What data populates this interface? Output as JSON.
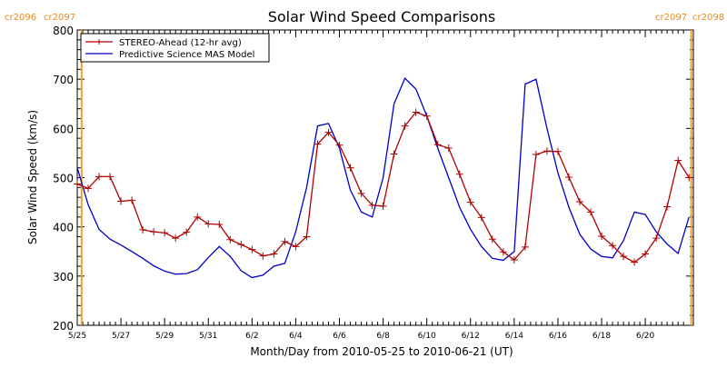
{
  "chart_data": {
    "type": "line",
    "title": "Solar Wind Speed Comparisons",
    "xlabel": "Month/Day from 2010-05-25 to 2010-06-21 (UT)",
    "ylabel": "Solar Wind Speed (km/s)",
    "x_unit": "days",
    "xlim": [
      0,
      28.2
    ],
    "ylim": [
      200,
      800
    ],
    "yticks": [
      200,
      300,
      400,
      500,
      600,
      700,
      800
    ],
    "xticks": [
      {
        "x": 0,
        "label": "5/25"
      },
      {
        "x": 2,
        "label": "5/27"
      },
      {
        "x": 4,
        "label": "5/29"
      },
      {
        "x": 6,
        "label": "5/31"
      },
      {
        "x": 8,
        "label": "6/2"
      },
      {
        "x": 10,
        "label": "6/4"
      },
      {
        "x": 12,
        "label": "6/6"
      },
      {
        "x": 14,
        "label": "6/8"
      },
      {
        "x": 16,
        "label": "6/10"
      },
      {
        "x": 18,
        "label": "6/12"
      },
      {
        "x": 20,
        "label": "6/14"
      },
      {
        "x": 22,
        "label": "6/16"
      },
      {
        "x": 24,
        "label": "6/18"
      },
      {
        "x": 26,
        "label": "6/20"
      }
    ],
    "grid": false,
    "legend": "top-left",
    "markers": [
      {
        "x": 0.2,
        "left_label": "cr2096",
        "right_label": "cr2097"
      },
      {
        "x": 28.1,
        "left_label": "cr2097",
        "right_label": "cr2098"
      }
    ],
    "series": [
      {
        "name": "STEREO-Ahead (12-hr avg)",
        "color": "#b00000",
        "marker": "plus",
        "x": [
          0,
          0.5,
          1,
          1.5,
          2,
          2.5,
          3,
          3.5,
          4,
          4.5,
          5,
          5.5,
          6,
          6.5,
          7,
          7.5,
          8,
          8.5,
          9,
          9.5,
          10,
          10.5,
          11,
          11.5,
          12,
          12.5,
          13,
          13.5,
          14,
          14.5,
          15,
          15.5,
          16,
          16.5,
          17,
          17.5,
          18,
          18.5,
          19,
          19.5,
          20,
          20.5,
          21,
          21.5,
          22,
          22.5,
          23,
          23.5,
          24,
          24.5,
          25,
          25.5,
          26,
          26.5,
          27,
          27.5,
          28
        ],
        "y": [
          487,
          478,
          502,
          502,
          452,
          454,
          394,
          390,
          388,
          377,
          389,
          420,
          406,
          405,
          374,
          364,
          354,
          341,
          345,
          370,
          360,
          380,
          568,
          592,
          566,
          520,
          468,
          444,
          442,
          548,
          605,
          633,
          625,
          567,
          560,
          507,
          450,
          419,
          375,
          349,
          333,
          359,
          547,
          554,
          553,
          501,
          451,
          430,
          381,
          362,
          340,
          328,
          345,
          377,
          441,
          535,
          500
        ]
      },
      {
        "name": "Predictive Science MAS Model",
        "color": "#0000c8",
        "marker": "none",
        "x": [
          0,
          0.5,
          1,
          1.5,
          2,
          2.5,
          3,
          3.5,
          4,
          4.5,
          5,
          5.5,
          6,
          6.5,
          7,
          7.5,
          8,
          8.5,
          9,
          9.5,
          10,
          10.5,
          11,
          11.5,
          12,
          12.5,
          13,
          13.5,
          14,
          14.5,
          15,
          15.5,
          16,
          16.5,
          17,
          17.5,
          18,
          18.5,
          19,
          19.5,
          20,
          20.5,
          21,
          21.5,
          22,
          22.5,
          23,
          23.5,
          24,
          24.5,
          25,
          25.5,
          26,
          26.5,
          27,
          27.5,
          28
        ],
        "y": [
          520,
          445,
          395,
          375,
          363,
          350,
          336,
          321,
          310,
          304,
          305,
          313,
          338,
          360,
          340,
          311,
          297,
          302,
          320,
          326,
          390,
          480,
          605,
          610,
          560,
          475,
          430,
          420,
          500,
          650,
          702,
          680,
          625,
          560,
          500,
          440,
          395,
          360,
          336,
          332,
          350,
          690,
          700,
          600,
          510,
          440,
          385,
          355,
          340,
          337,
          372,
          430,
          425,
          390,
          365,
          346,
          420
        ]
      }
    ]
  }
}
